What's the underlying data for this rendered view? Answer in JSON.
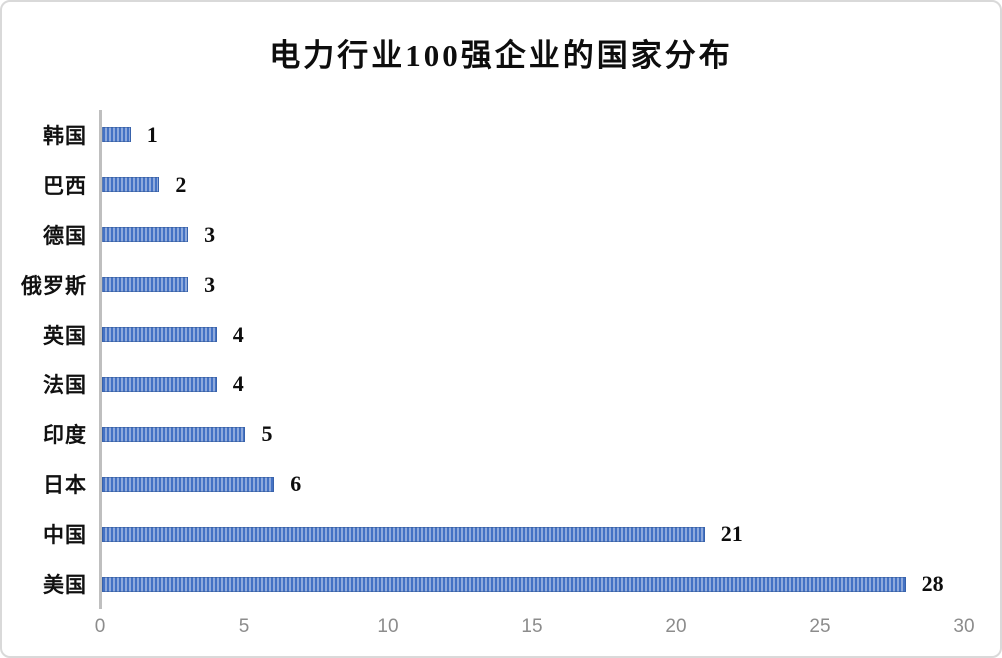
{
  "title": "电力行业100强企业的国家分布",
  "frame": {
    "background": "#ffffff",
    "border_color": "#d9d9d9"
  },
  "chart_data": {
    "type": "bar",
    "orientation": "horizontal",
    "title": "电力行业100强企业的国家分布",
    "categories": [
      "韩国",
      "巴西",
      "德国",
      "俄罗斯",
      "英国",
      "法国",
      "印度",
      "日本",
      "中国",
      "美国"
    ],
    "values": [
      1,
      2,
      3,
      3,
      4,
      4,
      5,
      6,
      21,
      28
    ],
    "data_labels": [
      "1",
      "2",
      "3",
      "3",
      "4",
      "4",
      "5",
      "6",
      "21",
      "28"
    ],
    "xlabel": "",
    "ylabel": "",
    "xlim": [
      0,
      30
    ],
    "x_ticks": [
      0,
      5,
      10,
      15,
      20,
      25,
      30
    ],
    "grid": false,
    "legend": false,
    "colors": {
      "bar_stripe_dark": "#4472c4",
      "bar_stripe_light": "#8faadc",
      "axis_line": "#bfbfbf",
      "tick_label": "#8c8c8c",
      "data_label": "#0d0d0d",
      "title": "#0d0d0d"
    }
  }
}
